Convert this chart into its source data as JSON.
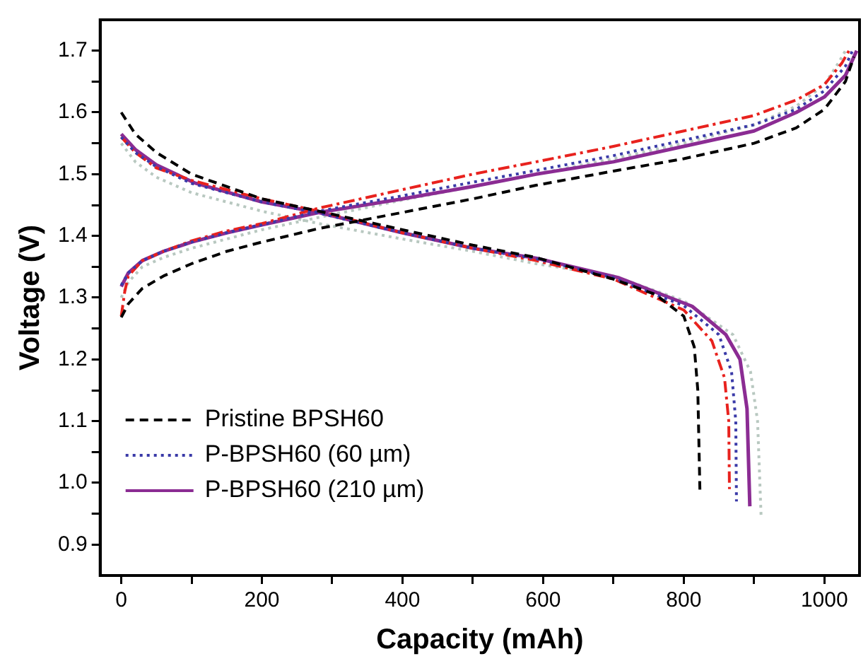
{
  "chart_data": {
    "type": "line",
    "xlabel": "Capacity (mAh)",
    "ylabel": "Voltage (V)",
    "xlim": [
      -30,
      1050
    ],
    "ylim": [
      0.85,
      1.75
    ],
    "xticks": [
      0,
      {
        "value": 100,
        "label": null
      },
      200,
      {
        "value": 300,
        "label": null
      },
      400,
      {
        "value": 500,
        "label": null
      },
      600,
      {
        "value": 700,
        "label": null
      },
      800,
      {
        "value": 900,
        "label": null
      },
      1000
    ],
    "yticks": [
      {
        "value": 0.9,
        "label": "0.9"
      },
      {
        "value": 0.95,
        "label": null
      },
      {
        "value": 1,
        "label": "1.0"
      },
      {
        "value": 1.05,
        "label": null
      },
      1.1,
      {
        "value": 1.15,
        "label": null
      },
      1.2,
      {
        "value": 1.25,
        "label": null
      },
      1.3,
      {
        "value": 1.35,
        "label": null
      },
      1.4,
      {
        "value": 1.45,
        "label": null
      },
      1.5,
      {
        "value": 1.55,
        "label": null
      },
      1.6,
      {
        "value": 1.65,
        "label": null
      },
      1.7
    ],
    "grid": false,
    "legend": "bottom left",
    "marker": "none",
    "series": [
      {
        "name": "Pristine BPSH60",
        "color": "#000000",
        "line_style": "dashed",
        "x": [
          0,
          10,
          30,
          60,
          100,
          150,
          200,
          281,
          400,
          500,
          590,
          700,
          800,
          900,
          960,
          1000,
          1030,
          1042,
          null,
          0,
          20,
          50,
          100,
          200,
          281,
          400,
          500,
          590,
          700,
          760,
          800,
          815,
          820,
          823
        ],
        "values": [
          1.268,
          1.29,
          1.315,
          1.335,
          1.355,
          1.375,
          1.39,
          1.412,
          1.438,
          1.46,
          1.482,
          1.505,
          1.525,
          1.55,
          1.575,
          1.605,
          1.65,
          1.69,
          null,
          1.6,
          1.565,
          1.535,
          1.5,
          1.46,
          1.44,
          1.41,
          1.385,
          1.365,
          1.33,
          1.305,
          1.27,
          1.22,
          1.15,
          0.987
        ]
      },
      {
        "name": "P-BPSH60 (60 µm)",
        "color": "#3a3aa8",
        "line_style": "dotted",
        "x": [
          0,
          10,
          30,
          60,
          100,
          150,
          200,
          281,
          400,
          500,
          590,
          700,
          800,
          900,
          960,
          1000,
          1030,
          1040,
          null,
          0,
          20,
          50,
          100,
          200,
          281,
          400,
          500,
          590,
          700,
          800,
          850,
          868,
          874,
          875
        ],
        "values": [
          1.32,
          1.34,
          1.36,
          1.375,
          1.39,
          1.405,
          1.418,
          1.44,
          1.465,
          1.487,
          1.506,
          1.53,
          1.555,
          1.58,
          1.605,
          1.635,
          1.675,
          1.7,
          null,
          1.56,
          1.535,
          1.512,
          1.485,
          1.455,
          1.437,
          1.405,
          1.38,
          1.363,
          1.332,
          1.287,
          1.24,
          1.18,
          1.1,
          0.97
        ]
      },
      {
        "color": "#e8221e",
        "line_style": "dashdot",
        "x": [
          0,
          5,
          10,
          30,
          60,
          100,
          150,
          200,
          281,
          400,
          500,
          590,
          700,
          800,
          900,
          960,
          1000,
          1025,
          1035,
          null,
          0,
          20,
          50,
          100,
          200,
          281,
          400,
          500,
          590,
          700,
          800,
          840,
          858,
          864,
          865
        ],
        "values": [
          1.27,
          1.31,
          1.335,
          1.36,
          1.375,
          1.392,
          1.408,
          1.42,
          1.445,
          1.475,
          1.5,
          1.52,
          1.545,
          1.57,
          1.595,
          1.62,
          1.645,
          1.68,
          1.7,
          null,
          1.56,
          1.535,
          1.51,
          1.49,
          1.46,
          1.44,
          1.405,
          1.38,
          1.36,
          1.33,
          1.28,
          1.23,
          1.17,
          1.1,
          0.99
        ]
      },
      {
        "name": "P-BPSH60 (210 µm)",
        "color": "#8b2c93",
        "line_style": "solid",
        "x": [
          0,
          10,
          30,
          60,
          100,
          150,
          200,
          281,
          400,
          500,
          590,
          700,
          800,
          900,
          960,
          1000,
          1030,
          1046,
          null,
          0,
          20,
          50,
          104,
          200,
          281,
          400,
          500,
          590,
          708,
          812,
          860,
          880,
          890,
          894
        ],
        "values": [
          1.318,
          1.34,
          1.36,
          1.375,
          1.39,
          1.405,
          1.418,
          1.438,
          1.46,
          1.48,
          1.5,
          1.52,
          1.545,
          1.57,
          1.6,
          1.625,
          1.66,
          1.7,
          null,
          1.565,
          1.54,
          1.515,
          1.486,
          1.455,
          1.438,
          1.405,
          1.38,
          1.364,
          1.332,
          1.286,
          1.24,
          1.2,
          1.12,
          0.962
        ]
      },
      {
        "color": "#b8c8c0",
        "line_style": "dotted",
        "x": [
          0,
          10,
          30,
          60,
          100,
          150,
          200,
          281,
          400,
          500,
          590,
          700,
          800,
          900,
          960,
          1000,
          1020,
          1030,
          null,
          0,
          20,
          50,
          100,
          200,
          281,
          400,
          500,
          590,
          700,
          800,
          870,
          895,
          905,
          910
        ],
        "values": [
          1.3,
          1.325,
          1.35,
          1.365,
          1.38,
          1.395,
          1.41,
          1.43,
          1.458,
          1.48,
          1.5,
          1.525,
          1.55,
          1.58,
          1.61,
          1.645,
          1.68,
          1.7,
          null,
          1.55,
          1.52,
          1.495,
          1.47,
          1.44,
          1.42,
          1.395,
          1.375,
          1.355,
          1.335,
          1.295,
          1.24,
          1.18,
          1.1,
          0.946
        ]
      }
    ]
  }
}
